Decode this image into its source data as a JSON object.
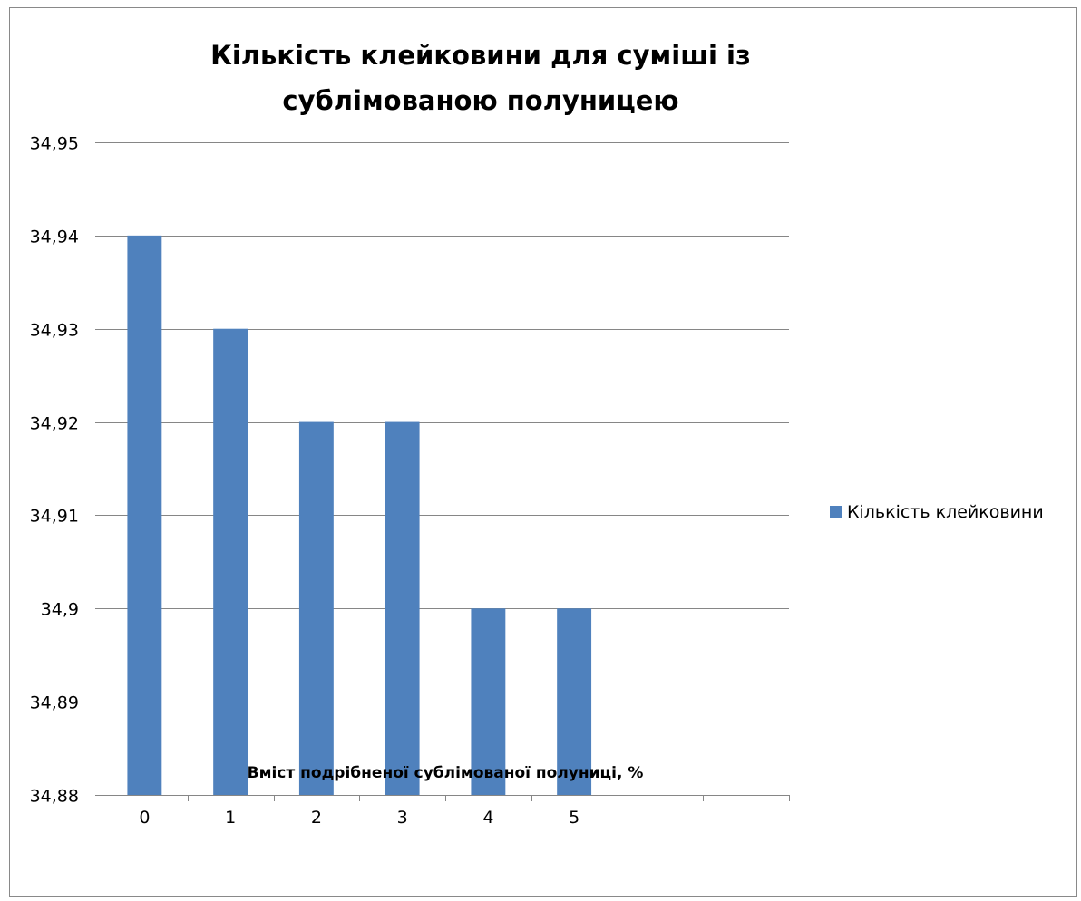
{
  "chart_data": {
    "type": "bar",
    "title": "Кількість клейковини для суміші із сублімованою полуницею",
    "xlabel": "Вміст подрібненої сублімованої полуниці, %",
    "ylabel": "",
    "categories": [
      "0",
      "1",
      "2",
      "3",
      "4",
      "5",
      "",
      ""
    ],
    "series": [
      {
        "name": "Кількість клейковини",
        "values": [
          34.94,
          34.93,
          34.92,
          34.92,
          34.9,
          34.9,
          null,
          null
        ]
      }
    ],
    "ylim": [
      34.88,
      34.95
    ],
    "yticks": [
      34.88,
      34.89,
      34.9,
      34.91,
      34.92,
      34.93,
      34.94,
      34.95
    ],
    "ytick_labels": [
      "34,88",
      "34,89",
      "34,9",
      "34,91",
      "34,92",
      "34,93",
      "34,94",
      "34,95"
    ],
    "grid": true,
    "legend": "right",
    "colors": {
      "bar": "#4f81bd",
      "grid": "#868686",
      "axis": "#868686"
    }
  }
}
